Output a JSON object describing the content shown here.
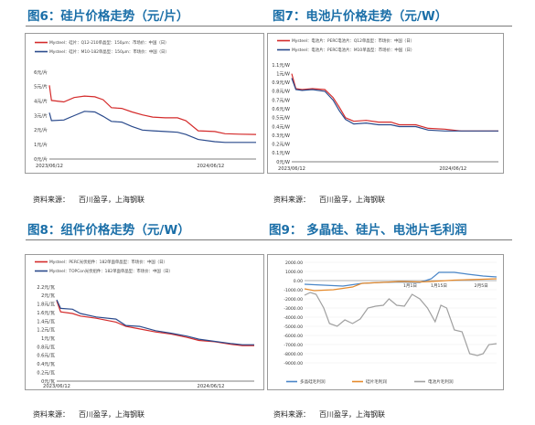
{
  "figures": {
    "fig6": {
      "title": "图6：硅片价格走势（元/片）",
      "source_label": "资料来源：",
      "source_text": "百川盈孚，上海钢联"
    },
    "fig7": {
      "title": "图7：电池片价格走势（元/W）",
      "source_label": "资料来源：",
      "source_text": "百川盈孚，上海钢联"
    },
    "fig8": {
      "title": "图8：组件价格走势（元/W）",
      "source_label": "资料来源：",
      "source_text": "百川盈孚，上海钢联"
    },
    "fig9": {
      "title": "图9：  多晶硅、硅片、电池片毛利润",
      "source_label": "资料来源：",
      "source_text": "百川盈孚，上海钢联"
    }
  },
  "chart_data": [
    {
      "id": "fig6",
      "type": "line",
      "legend": [
        "Mysteel：硅片：Q12-210单晶型：150μm：市场价：中国（日）",
        "Mysteel：硅片：M10-182单晶型：150μm：市场价：中国（日）"
      ],
      "legend_position": "top",
      "ylim": [
        0,
        6
      ],
      "yticks": [
        "0元/片",
        "1元/片",
        "2元/片",
        "3元/片",
        "4元/片",
        "5元/片",
        "6元/片"
      ],
      "xticks": [
        "2023/06/12",
        "2024/06/12"
      ],
      "series": [
        {
          "color": "#d42a2a",
          "points": [
            [
              0,
              5.1
            ],
            [
              0.01,
              4.05
            ],
            [
              0.07,
              3.95
            ],
            [
              0.12,
              4.25
            ],
            [
              0.17,
              4.35
            ],
            [
              0.22,
              4.3
            ],
            [
              0.26,
              4.1
            ],
            [
              0.3,
              3.55
            ],
            [
              0.35,
              3.5
            ],
            [
              0.4,
              3.25
            ],
            [
              0.45,
              3.05
            ],
            [
              0.5,
              2.9
            ],
            [
              0.56,
              2.85
            ],
            [
              0.62,
              2.85
            ],
            [
              0.66,
              2.65
            ],
            [
              0.72,
              1.95
            ],
            [
              0.8,
              1.9
            ],
            [
              0.85,
              1.75
            ],
            [
              0.92,
              1.72
            ],
            [
              1,
              1.7
            ]
          ]
        },
        {
          "color": "#2a4a8c",
          "points": [
            [
              0,
              3.2
            ],
            [
              0.01,
              2.65
            ],
            [
              0.07,
              2.7
            ],
            [
              0.12,
              3.0
            ],
            [
              0.17,
              3.3
            ],
            [
              0.22,
              3.25
            ],
            [
              0.26,
              2.95
            ],
            [
              0.3,
              2.6
            ],
            [
              0.35,
              2.55
            ],
            [
              0.4,
              2.25
            ],
            [
              0.45,
              2.0
            ],
            [
              0.5,
              1.95
            ],
            [
              0.56,
              1.9
            ],
            [
              0.62,
              1.85
            ],
            [
              0.66,
              1.7
            ],
            [
              0.72,
              1.35
            ],
            [
              0.8,
              1.2
            ],
            [
              0.85,
              1.15
            ],
            [
              0.92,
              1.15
            ],
            [
              1,
              1.15
            ]
          ]
        }
      ]
    },
    {
      "id": "fig7",
      "type": "line",
      "legend": [
        "Mysteel：电池片：PERC电池片：Q12单晶型：市场价：中国（日）",
        "Mysteel：电池片：PERC电池片：M10单晶型：市场价：中国（日）"
      ],
      "legend_position": "top",
      "ylim": [
        0,
        1.1
      ],
      "yticks": [
        "0元/W",
        "0.1元/W",
        "0.2元/W",
        "0.3元/W",
        "0.4元/W",
        "0.5元/W",
        "0.6元/W",
        "0.7元/W",
        "0.8元/W",
        "0.9元/W",
        "1元/W",
        "1.1元/W"
      ],
      "xticks": [
        "2023/06/12",
        "2024/06/12"
      ],
      "series": [
        {
          "color": "#d42a2a",
          "points": [
            [
              0,
              1.0
            ],
            [
              0.02,
              0.83
            ],
            [
              0.05,
              0.82
            ],
            [
              0.1,
              0.83
            ],
            [
              0.16,
              0.82
            ],
            [
              0.2,
              0.73
            ],
            [
              0.23,
              0.62
            ],
            [
              0.26,
              0.5
            ],
            [
              0.3,
              0.46
            ],
            [
              0.36,
              0.47
            ],
            [
              0.42,
              0.45
            ],
            [
              0.48,
              0.45
            ],
            [
              0.52,
              0.42
            ],
            [
              0.6,
              0.42
            ],
            [
              0.66,
              0.38
            ],
            [
              0.74,
              0.37
            ],
            [
              0.82,
              0.35
            ],
            [
              0.9,
              0.35
            ],
            [
              1,
              0.35
            ]
          ]
        },
        {
          "color": "#2a4a8c",
          "points": [
            [
              0,
              0.95
            ],
            [
              0.02,
              0.82
            ],
            [
              0.05,
              0.81
            ],
            [
              0.1,
              0.82
            ],
            [
              0.16,
              0.8
            ],
            [
              0.2,
              0.7
            ],
            [
              0.23,
              0.58
            ],
            [
              0.26,
              0.48
            ],
            [
              0.3,
              0.43
            ],
            [
              0.36,
              0.44
            ],
            [
              0.42,
              0.42
            ],
            [
              0.48,
              0.42
            ],
            [
              0.52,
              0.4
            ],
            [
              0.6,
              0.4
            ],
            [
              0.66,
              0.36
            ],
            [
              0.74,
              0.35
            ],
            [
              0.82,
              0.35
            ],
            [
              0.9,
              0.35
            ],
            [
              1,
              0.35
            ]
          ]
        }
      ]
    },
    {
      "id": "fig8",
      "type": "line",
      "legend": [
        "Mysteel：PERC光伏组件：182单面单晶型：市场价：中国（日）",
        "Mysteel：TOPCon光伏组件：182单面单晶型：市场价：中国（日）"
      ],
      "legend_position": "top",
      "ylim": [
        0,
        2.2
      ],
      "yticks": [
        "0元/瓦",
        "0.2元/瓦",
        "0.4元/瓦",
        "0.6元/瓦",
        "0.8元/瓦",
        "1元/瓦",
        "1.2元/瓦",
        "1.4元/瓦",
        "1.6元/瓦",
        "1.8元/瓦",
        "2元/瓦",
        "2.2元/瓦"
      ],
      "xticks": [
        "2023/06/12",
        "2024/06/12"
      ],
      "series": [
        {
          "color": "#d42a2a",
          "points": [
            [
              0,
              1.88
            ],
            [
              0.02,
              1.62
            ],
            [
              0.08,
              1.58
            ],
            [
              0.12,
              1.52
            ],
            [
              0.2,
              1.47
            ],
            [
              0.3,
              1.38
            ],
            [
              0.35,
              1.28
            ],
            [
              0.42,
              1.22
            ],
            [
              0.5,
              1.15
            ],
            [
              0.58,
              1.1
            ],
            [
              0.66,
              1.02
            ],
            [
              0.72,
              0.95
            ],
            [
              0.8,
              0.92
            ],
            [
              0.88,
              0.86
            ],
            [
              0.94,
              0.83
            ],
            [
              1,
              0.83
            ]
          ]
        },
        {
          "color": "#2a4a8c",
          "points": [
            [
              0,
              1.9
            ],
            [
              0.02,
              1.7
            ],
            [
              0.08,
              1.68
            ],
            [
              0.12,
              1.58
            ],
            [
              0.2,
              1.5
            ],
            [
              0.3,
              1.45
            ],
            [
              0.35,
              1.3
            ],
            [
              0.42,
              1.28
            ],
            [
              0.5,
              1.18
            ],
            [
              0.58,
              1.12
            ],
            [
              0.66,
              1.05
            ],
            [
              0.72,
              0.98
            ],
            [
              0.8,
              0.93
            ],
            [
              0.88,
              0.88
            ],
            [
              0.94,
              0.85
            ],
            [
              1,
              0.85
            ]
          ]
        }
      ]
    },
    {
      "id": "fig9",
      "type": "line",
      "ylim": [
        -9000,
        2000
      ],
      "yticks": [
        "-9000.00",
        "-8000.00",
        "-7000.00",
        "-6000.00",
        "-5000.00",
        "-4000.00",
        "-3000.00",
        "-2000.00",
        "-1000.00",
        "0.00",
        "1000.00",
        "2000.00"
      ],
      "xtick_labels": [
        "1月1日",
        "1月15日",
        "2月5日"
      ],
      "legend": [
        "多晶硅毛利润",
        "硅片毛利润",
        "电池片毛利润"
      ],
      "legend_position": "bottom",
      "series": [
        {
          "name": "多晶硅毛利润",
          "color": "#4a86c8",
          "points": [
            [
              0,
              -400
            ],
            [
              0.1,
              -500
            ],
            [
              0.2,
              -600
            ],
            [
              0.3,
              -300
            ],
            [
              0.4,
              -200
            ],
            [
              0.5,
              -150
            ],
            [
              0.6,
              -200
            ],
            [
              0.66,
              200
            ],
            [
              0.7,
              900
            ],
            [
              0.78,
              900
            ],
            [
              0.85,
              700
            ],
            [
              0.93,
              500
            ],
            [
              1,
              400
            ]
          ]
        },
        {
          "name": "硅片毛利润",
          "color": "#e58a2c",
          "points": [
            [
              0,
              -900
            ],
            [
              0.05,
              -1100
            ],
            [
              0.15,
              -1000
            ],
            [
              0.25,
              -700
            ],
            [
              0.3,
              -300
            ],
            [
              0.4,
              -200
            ],
            [
              0.5,
              -100
            ],
            [
              0.6,
              -150
            ],
            [
              0.66,
              -100
            ],
            [
              0.7,
              -50
            ],
            [
              0.78,
              50
            ],
            [
              0.85,
              100
            ],
            [
              0.93,
              150
            ],
            [
              1,
              200
            ]
          ]
        },
        {
          "name": "电池片毛利润",
          "color": "#a0a0a0",
          "points": [
            [
              0,
              -1600
            ],
            [
              0.03,
              -1300
            ],
            [
              0.06,
              -1500
            ],
            [
              0.1,
              -3000
            ],
            [
              0.13,
              -4700
            ],
            [
              0.17,
              -5000
            ],
            [
              0.21,
              -4300
            ],
            [
              0.25,
              -4700
            ],
            [
              0.29,
              -4200
            ],
            [
              0.33,
              -3000
            ],
            [
              0.37,
              -2800
            ],
            [
              0.41,
              -2700
            ],
            [
              0.44,
              -2000
            ],
            [
              0.48,
              -2700
            ],
            [
              0.52,
              -2800
            ],
            [
              0.56,
              -1500
            ],
            [
              0.6,
              -2000
            ],
            [
              0.64,
              -3000
            ],
            [
              0.68,
              -4500
            ],
            [
              0.71,
              -2700
            ],
            [
              0.74,
              -3000
            ],
            [
              0.78,
              -5400
            ],
            [
              0.82,
              -5600
            ],
            [
              0.86,
              -8000
            ],
            [
              0.9,
              -8200
            ],
            [
              0.93,
              -8000
            ],
            [
              0.96,
              -7000
            ],
            [
              1,
              -6900
            ]
          ]
        }
      ]
    }
  ]
}
